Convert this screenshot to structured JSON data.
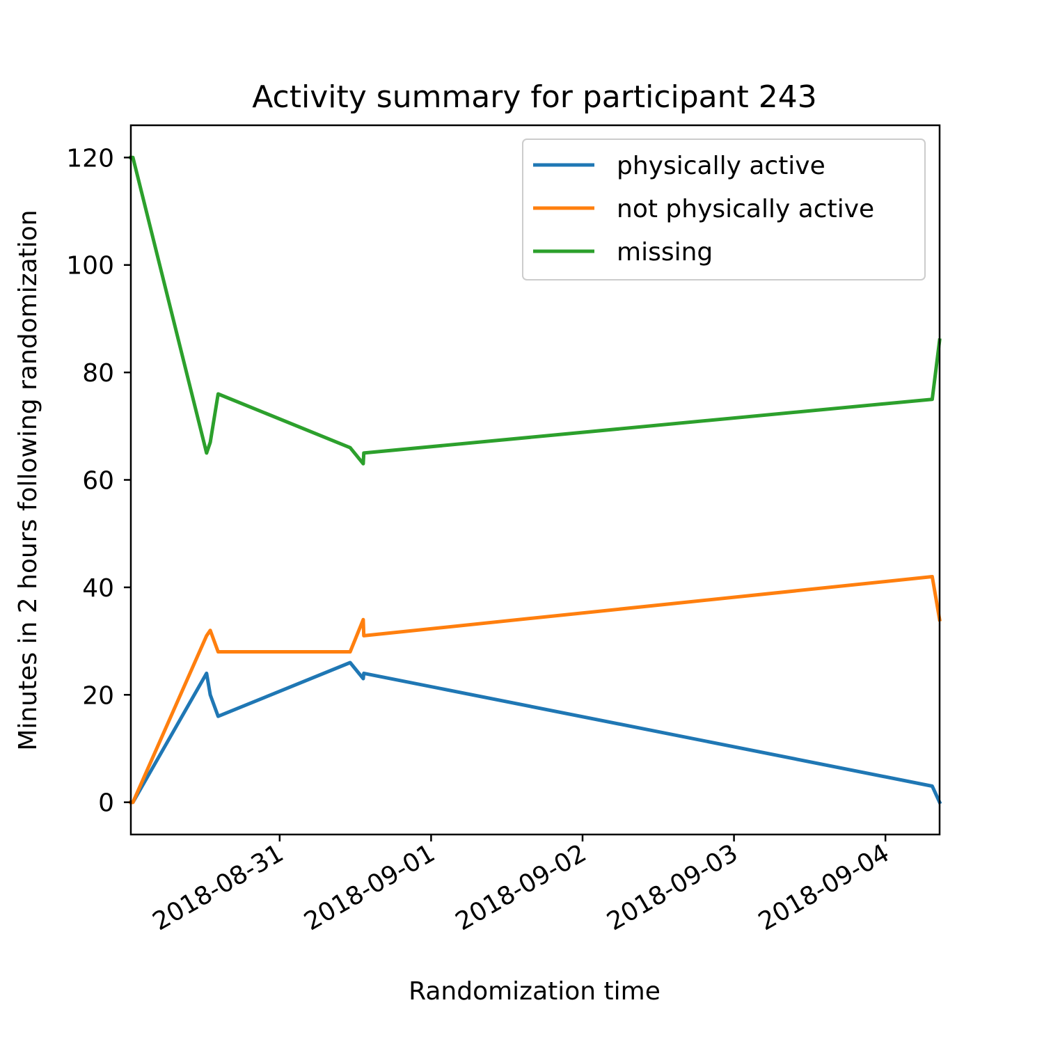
{
  "chart_data": {
    "type": "line",
    "title": "Activity summary for participant 243",
    "xlabel": "Randomization time",
    "ylabel": "Minutes in 2 hours following randomization",
    "x_scale": "date",
    "xlim": [
      "2018-08-30 00:25",
      "2018-09-04 08:35"
    ],
    "ylim": [
      -6,
      126
    ],
    "yticks": [
      0,
      20,
      40,
      60,
      80,
      100,
      120
    ],
    "xticks": [
      "2018-08-31",
      "2018-09-01",
      "2018-09-02",
      "2018-09-03",
      "2018-09-04"
    ],
    "grid": false,
    "legend_position": "top-right",
    "x": [
      "2018-08-30 00:25",
      "2018-08-30 00:45",
      "2018-08-30 12:25",
      "2018-08-30 13:00",
      "2018-08-30 14:15",
      "2018-08-31 11:10",
      "2018-08-31 13:15",
      "2018-08-31 13:20",
      "2018-09-04 07:25",
      "2018-09-04 08:35"
    ],
    "series": [
      {
        "name": "physically active",
        "color": "#1f77b4",
        "values": [
          0,
          0,
          24,
          20,
          16,
          26,
          23,
          24,
          3,
          0
        ]
      },
      {
        "name": "not physically active",
        "color": "#ff7f0e",
        "values": [
          0,
          0,
          31,
          32,
          28,
          28,
          34,
          31,
          42,
          34
        ]
      },
      {
        "name": "missing",
        "color": "#2ca02c",
        "values": [
          120,
          120,
          65,
          67,
          76,
          66,
          63,
          65,
          75,
          86
        ]
      }
    ]
  }
}
